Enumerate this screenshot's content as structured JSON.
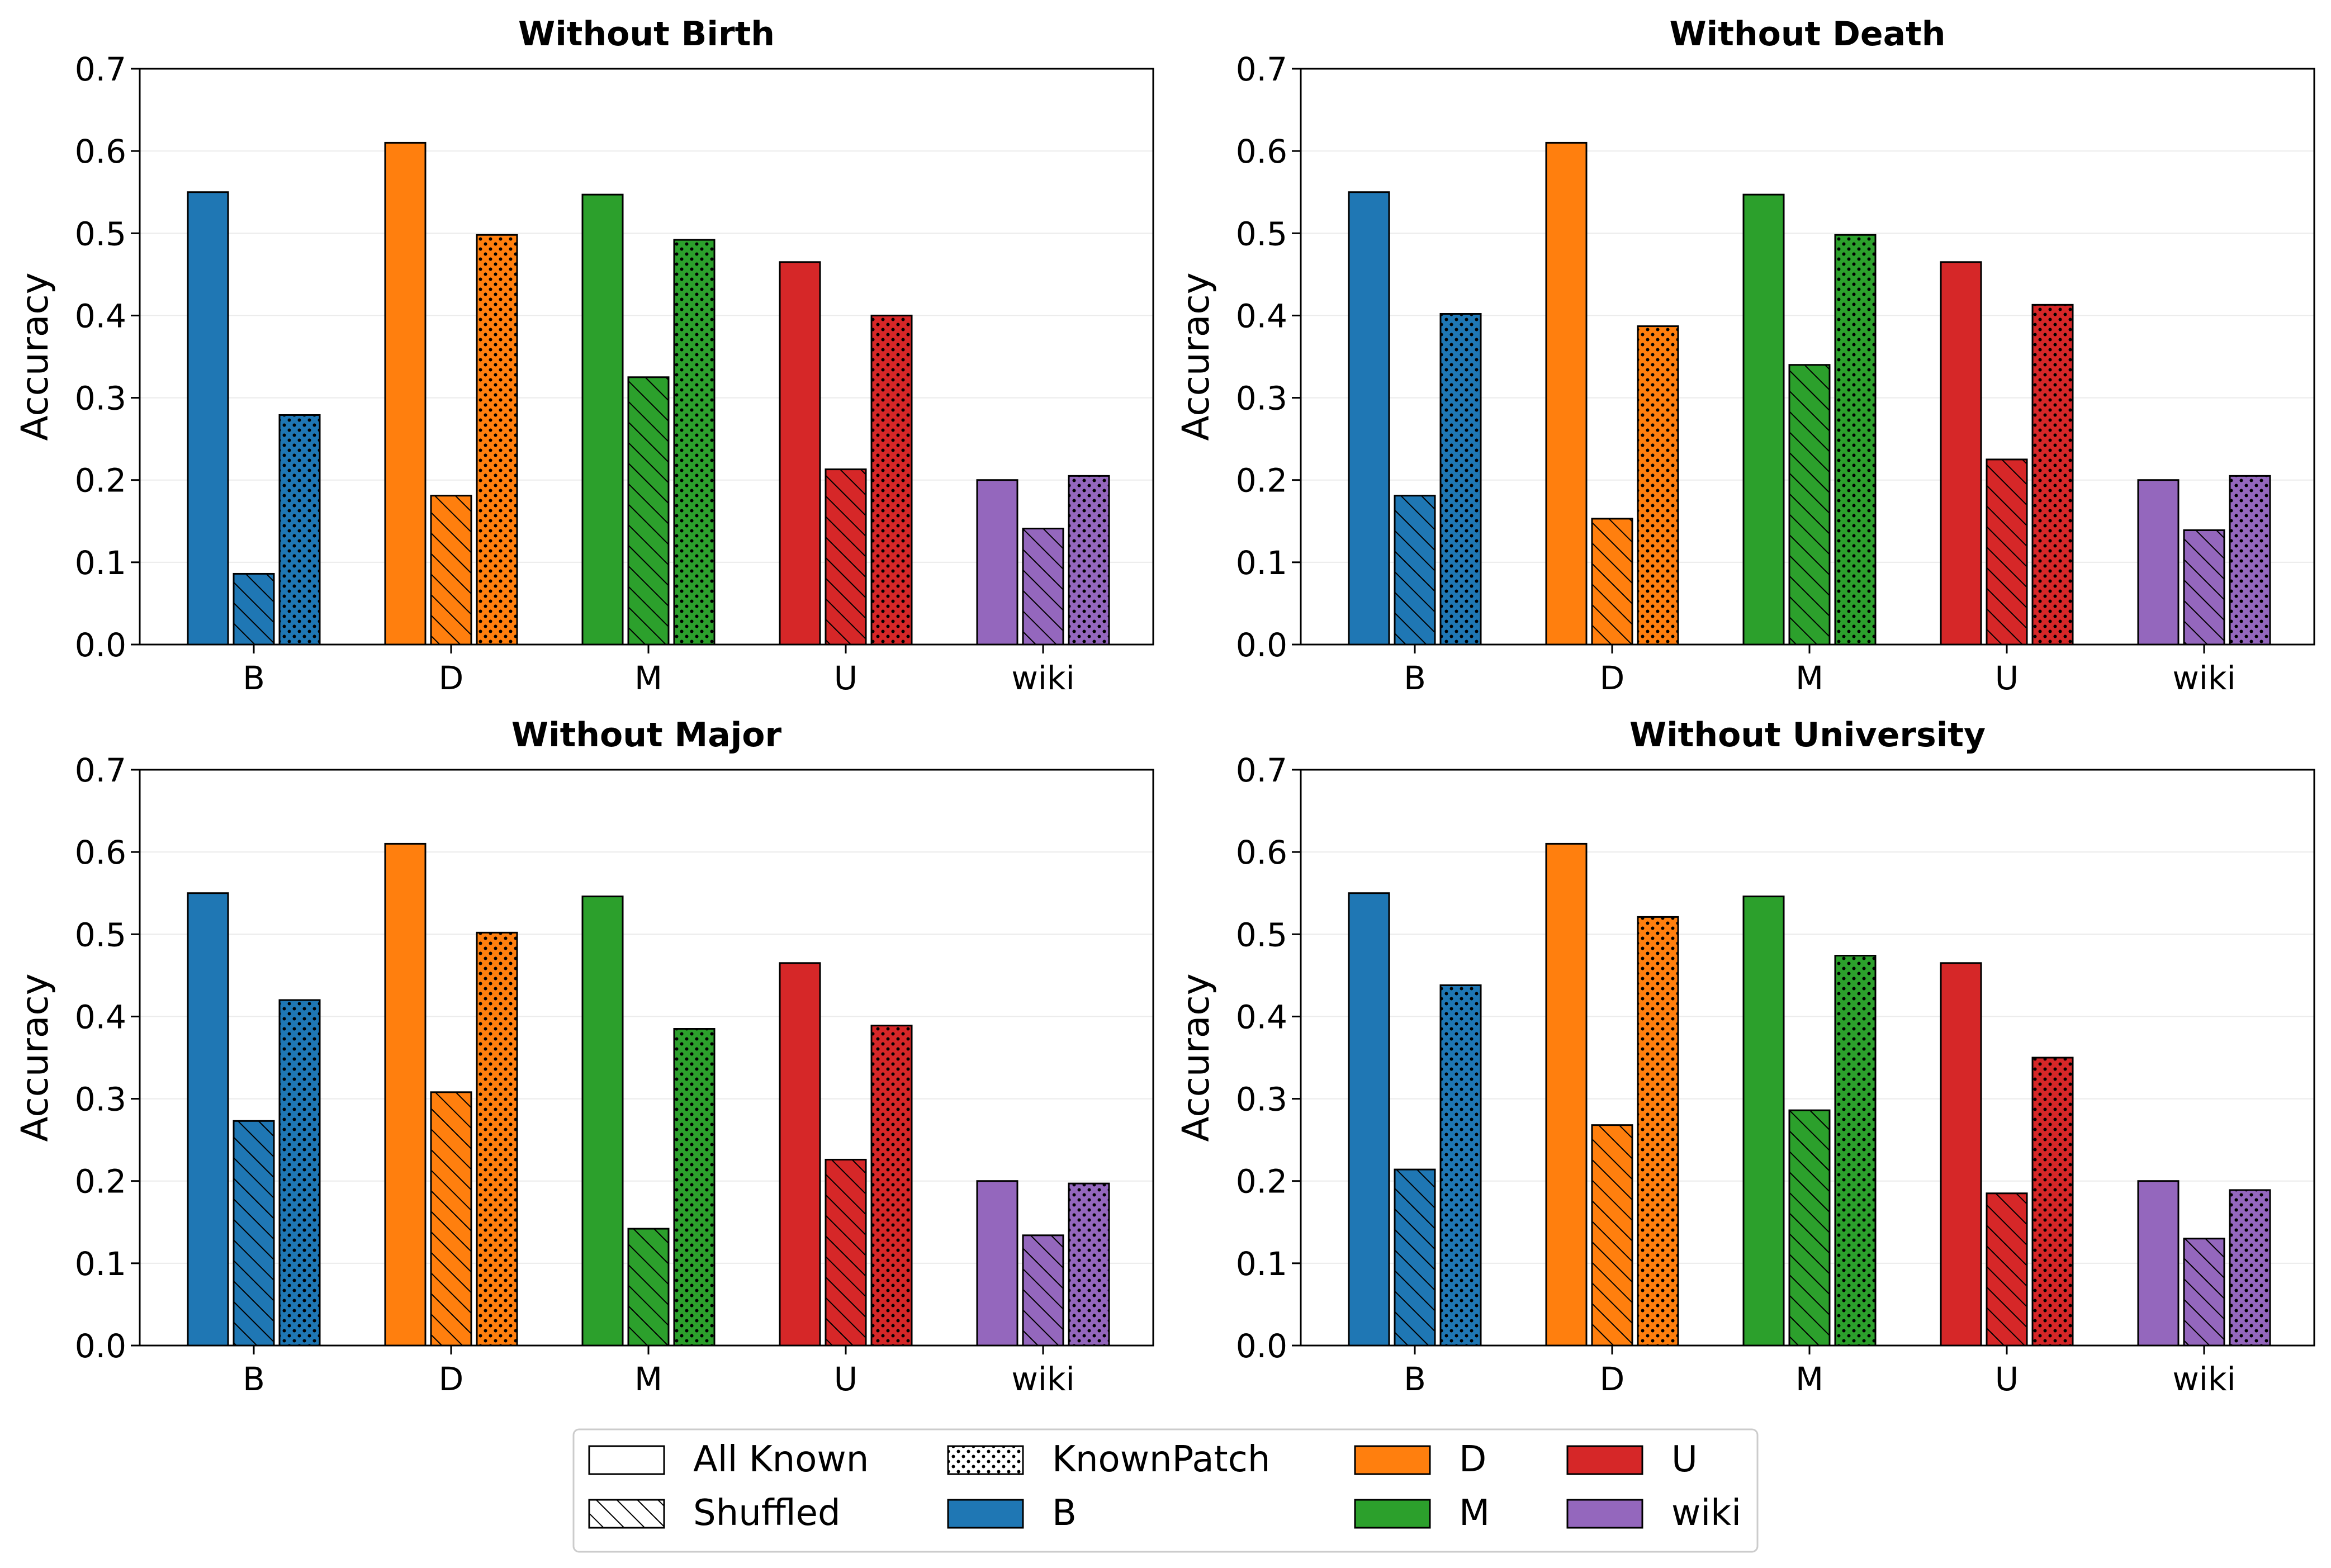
{
  "chart_data": [
    {
      "type": "bar",
      "title": "Without Birth",
      "ylabel": "Accuracy",
      "xlabel": "",
      "ylim": [
        0,
        0.7
      ],
      "yticks": [
        "0.0",
        "0.1",
        "0.2",
        "0.3",
        "0.4",
        "0.5",
        "0.6",
        "0.7"
      ],
      "categories": [
        "B",
        "D",
        "M",
        "U",
        "wiki"
      ],
      "series": [
        {
          "name": "All Known",
          "values": [
            0.55,
            0.61,
            0.547,
            0.465,
            0.2
          ]
        },
        {
          "name": "Shuffled",
          "values": [
            0.086,
            0.181,
            0.325,
            0.213,
            0.141
          ]
        },
        {
          "name": "KnownPatch",
          "values": [
            0.279,
            0.498,
            0.492,
            0.4,
            0.205
          ]
        }
      ]
    },
    {
      "type": "bar",
      "title": "Without Death",
      "ylabel": "Accuracy",
      "xlabel": "",
      "ylim": [
        0,
        0.7
      ],
      "yticks": [
        "0.0",
        "0.1",
        "0.2",
        "0.3",
        "0.4",
        "0.5",
        "0.6",
        "0.7"
      ],
      "categories": [
        "B",
        "D",
        "M",
        "U",
        "wiki"
      ],
      "series": [
        {
          "name": "All Known",
          "values": [
            0.55,
            0.61,
            0.547,
            0.465,
            0.2
          ]
        },
        {
          "name": "Shuffled",
          "values": [
            0.181,
            0.153,
            0.34,
            0.225,
            0.139
          ]
        },
        {
          "name": "KnownPatch",
          "values": [
            0.402,
            0.387,
            0.498,
            0.413,
            0.205
          ]
        }
      ]
    },
    {
      "type": "bar",
      "title": "Without Major",
      "ylabel": "Accuracy",
      "xlabel": "",
      "ylim": [
        0,
        0.7
      ],
      "yticks": [
        "0.0",
        "0.1",
        "0.2",
        "0.3",
        "0.4",
        "0.5",
        "0.6",
        "0.7"
      ],
      "categories": [
        "B",
        "D",
        "M",
        "U",
        "wiki"
      ],
      "series": [
        {
          "name": "All Known",
          "values": [
            0.55,
            0.61,
            0.546,
            0.465,
            0.2
          ]
        },
        {
          "name": "Shuffled",
          "values": [
            0.273,
            0.308,
            0.142,
            0.226,
            0.134
          ]
        },
        {
          "name": "KnownPatch",
          "values": [
            0.42,
            0.502,
            0.385,
            0.389,
            0.197
          ]
        }
      ]
    },
    {
      "type": "bar",
      "title": "Without University",
      "ylabel": "Accuracy",
      "xlabel": "",
      "ylim": [
        0,
        0.7
      ],
      "yticks": [
        "0.0",
        "0.1",
        "0.2",
        "0.3",
        "0.4",
        "0.5",
        "0.6",
        "0.7"
      ],
      "categories": [
        "B",
        "D",
        "M",
        "U",
        "wiki"
      ],
      "series": [
        {
          "name": "All Known",
          "values": [
            0.55,
            0.61,
            0.546,
            0.465,
            0.2
          ]
        },
        {
          "name": "Shuffled",
          "values": [
            0.214,
            0.268,
            0.286,
            0.185,
            0.13
          ]
        },
        {
          "name": "KnownPatch",
          "values": [
            0.438,
            0.521,
            0.474,
            0.35,
            0.189
          ]
        }
      ]
    }
  ],
  "colors": {
    "B": "#1f77b4",
    "D": "#ff7f0e",
    "M": "#2ca02c",
    "U": "#d62728",
    "wiki": "#9467bd"
  },
  "legend": {
    "position": "bottom-center",
    "entries": [
      {
        "label": "All Known",
        "kind": "pattern",
        "pattern": "none"
      },
      {
        "label": "Shuffled",
        "kind": "pattern",
        "pattern": "hatch"
      },
      {
        "label": "KnownPatch",
        "kind": "pattern",
        "pattern": "dots"
      },
      {
        "label": "B",
        "kind": "color",
        "color": "#1f77b4"
      },
      {
        "label": "D",
        "kind": "color",
        "color": "#ff7f0e"
      },
      {
        "label": "M",
        "kind": "color",
        "color": "#2ca02c"
      },
      {
        "label": "U",
        "kind": "color",
        "color": "#d62728"
      },
      {
        "label": "wiki",
        "kind": "color",
        "color": "#9467bd"
      }
    ]
  }
}
